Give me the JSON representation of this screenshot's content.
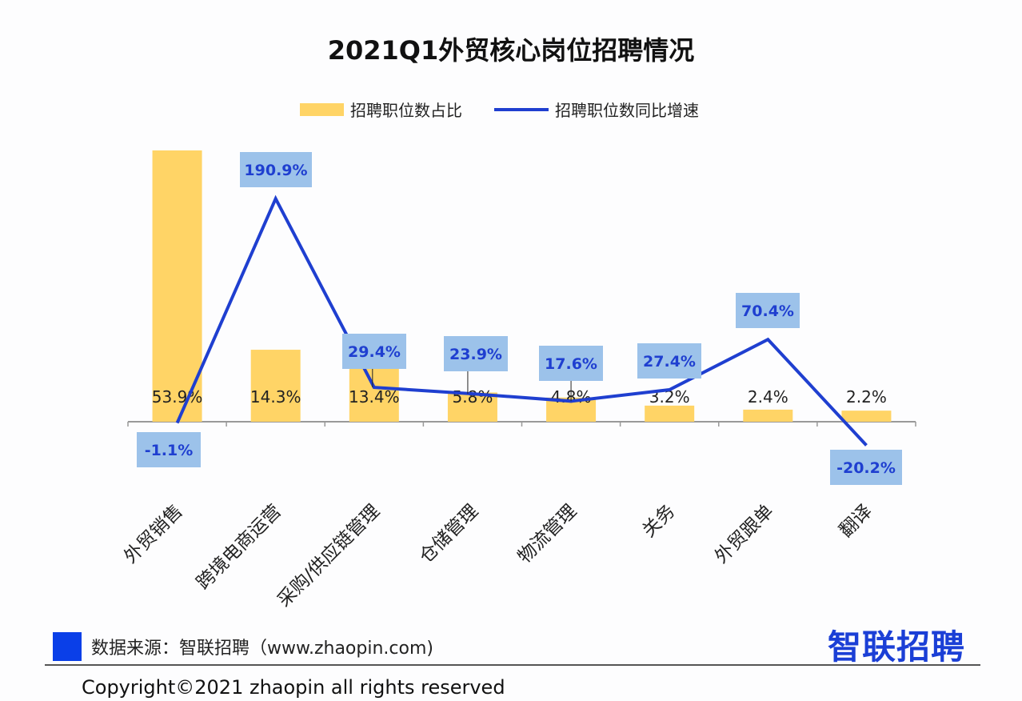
{
  "chart_data": {
    "type": "bar+line",
    "title": "2021Q1外贸核心岗位招聘情况",
    "categories": [
      "外贸销售",
      "跨境电商运营",
      "采购/供应链管理",
      "仓储管理",
      "物流管理",
      "关务",
      "外贸跟单",
      "翻译"
    ],
    "series": [
      {
        "name": "招聘职位数占比",
        "type": "bar",
        "color": "#ffd466",
        "values": [
          53.9,
          14.3,
          13.4,
          5.8,
          4.8,
          3.2,
          2.4,
          2.2
        ],
        "labels": [
          "53.9%",
          "14.3%",
          "13.4%",
          "5.8%",
          "4.8%",
          "3.2%",
          "2.4%",
          "2.2%"
        ]
      },
      {
        "name": "招聘职位数同比增速",
        "type": "line",
        "color": "#1f3fd0",
        "values": [
          -1.1,
          190.9,
          29.4,
          23.9,
          17.6,
          27.4,
          70.4,
          -20.2
        ],
        "labels": [
          "-1.1%",
          "190.9%",
          "29.4%",
          "23.9%",
          "17.6%",
          "27.4%",
          "70.4%",
          "-20.2%"
        ]
      }
    ],
    "legend": "top",
    "grid": false
  },
  "footer": {
    "source": "数据来源：智联招聘（www.zhaopin.com)",
    "logo": "智联招聘",
    "copyright": "Copyright©2021 zhaopin all rights reserved"
  }
}
